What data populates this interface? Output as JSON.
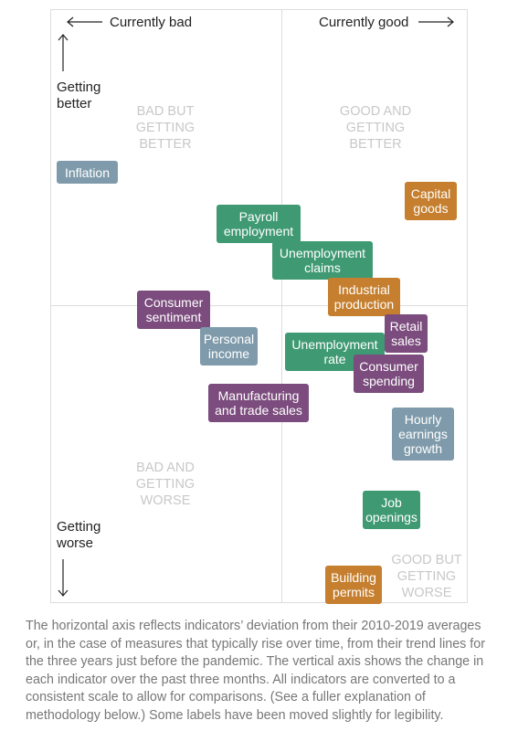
{
  "axes": {
    "left": "Currently bad",
    "right": "Currently good",
    "up": "Getting better",
    "down": "Getting worse"
  },
  "quadrants": [
    "BAD BUT GETTING BETTER",
    "GOOD AND GETTING BETTER",
    "BAD AND GETTING WORSE",
    "GOOD BUT GETTING WORSE"
  ],
  "nodes": [
    {
      "label": "Inflation",
      "color": "#7f9bab"
    },
    {
      "label": "Capital goods",
      "color": "#c57f2e"
    },
    {
      "label": "Payroll employment",
      "color": "#3f9a73"
    },
    {
      "label": "Unemployment claims",
      "color": "#3f9a73"
    },
    {
      "label": "Industrial production",
      "color": "#c57f2e"
    },
    {
      "label": "Consumer sentiment",
      "color": "#7b4c7d"
    },
    {
      "label": "Retail sales",
      "color": "#7b4c7d"
    },
    {
      "label": "Personal income",
      "color": "#7f9bab"
    },
    {
      "label": "Unemployment rate",
      "color": "#3f9a73"
    },
    {
      "label": "Consumer spending",
      "color": "#7b4c7d"
    },
    {
      "label": "Manufacturing and trade sales",
      "color": "#7b4c7d"
    },
    {
      "label": "Hourly earnings growth",
      "color": "#7f9bab"
    },
    {
      "label": "Job openings",
      "color": "#3f9a73"
    },
    {
      "label": "Building permits",
      "color": "#c57f2e"
    }
  ],
  "caption": "The horizontal axis reflects indicators’ deviation from their 2010-2019 averages or, in the case of measures that typically rise over time, from their trend lines for the three years just before the pandemic. The vertical axis shows the change in each indicator over the past three months. All indicators are converted to a consistent scale to allow for comparisons. (See a fuller explanation of methodology below.) Some labels have been moved slightly for legibility."
}
